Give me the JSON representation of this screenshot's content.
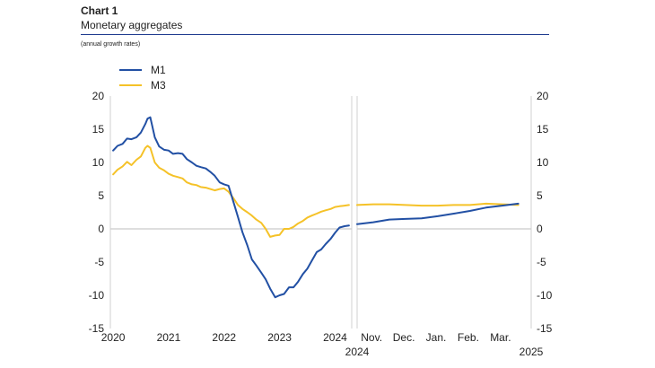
{
  "header": {
    "chart_number": "Chart 1",
    "chart_title": "Monetary aggregates",
    "subtitle": "(annual growth rates)"
  },
  "colors": {
    "m1": "#2250a4",
    "m3": "#f5c228",
    "title": "#1f3b8f",
    "rule": "#1f3b8f",
    "grid": "#d0d0d0",
    "zero": "#bdbdbd",
    "axis_text": "#222222"
  },
  "chart_data": {
    "type": "line",
    "title": "Monetary aggregates",
    "ylim": [
      -15,
      20
    ],
    "yticks": [
      20,
      15,
      10,
      5,
      0,
      -5,
      -10,
      -15
    ],
    "legend": {
      "placement": "top-left",
      "entries": [
        "M1",
        "M3"
      ]
    },
    "panels": [
      {
        "name": "left",
        "x_unit": "year",
        "xlim": [
          2019.95,
          2024.3
        ],
        "xticks": [
          {
            "value": 2020.0,
            "label": "2020"
          },
          {
            "value": 2021.0,
            "label": "2021"
          },
          {
            "value": 2022.0,
            "label": "2022"
          },
          {
            "value": 2023.0,
            "label": "2023"
          },
          {
            "value": 2024.0,
            "label": "2024"
          }
        ],
        "axis_note": "2024",
        "series": [
          {
            "name": "M1",
            "x": [
              2020.0,
              2020.08,
              2020.17,
              2020.25,
              2020.33,
              2020.42,
              2020.5,
              2020.58,
              2020.62,
              2020.67,
              2020.75,
              2020.83,
              2020.92,
              2021.0,
              2021.08,
              2021.17,
              2021.25,
              2021.33,
              2021.42,
              2021.5,
              2021.58,
              2021.67,
              2021.75,
              2021.83,
              2021.92,
              2022.0,
              2022.08,
              2022.17,
              2022.25,
              2022.33,
              2022.42,
              2022.5,
              2022.58,
              2022.67,
              2022.75,
              2022.83,
              2022.92,
              2023.0,
              2023.08,
              2023.17,
              2023.25,
              2023.33,
              2023.42,
              2023.5,
              2023.58,
              2023.67,
              2023.75,
              2023.83,
              2023.92,
              2024.0,
              2024.08,
              2024.17,
              2024.25
            ],
            "values": [
              11.8,
              12.5,
              12.8,
              13.6,
              13.5,
              13.8,
              14.5,
              15.8,
              16.6,
              16.8,
              13.8,
              12.4,
              11.9,
              11.8,
              11.3,
              11.4,
              11.3,
              10.5,
              10.0,
              9.5,
              9.3,
              9.1,
              8.6,
              8.0,
              7.0,
              6.7,
              6.5,
              4.0,
              1.8,
              -0.5,
              -2.5,
              -4.6,
              -5.5,
              -6.6,
              -7.6,
              -9.0,
              -10.3,
              -10.0,
              -9.8,
              -8.8,
              -8.8,
              -8.0,
              -6.8,
              -6.0,
              -4.8,
              -3.5,
              -3.1,
              -2.3,
              -1.5,
              -0.6,
              0.2,
              0.4,
              0.5
            ]
          },
          {
            "name": "M3",
            "x": [
              2020.0,
              2020.08,
              2020.17,
              2020.25,
              2020.33,
              2020.42,
              2020.5,
              2020.58,
              2020.62,
              2020.67,
              2020.75,
              2020.83,
              2020.92,
              2021.0,
              2021.08,
              2021.17,
              2021.25,
              2021.33,
              2021.42,
              2021.5,
              2021.58,
              2021.67,
              2021.75,
              2021.83,
              2021.92,
              2022.0,
              2022.08,
              2022.17,
              2022.25,
              2022.33,
              2022.42,
              2022.5,
              2022.58,
              2022.67,
              2022.75,
              2022.83,
              2022.92,
              2023.0,
              2023.08,
              2023.17,
              2023.25,
              2023.33,
              2023.42,
              2023.5,
              2023.58,
              2023.67,
              2023.75,
              2023.83,
              2023.92,
              2024.0,
              2024.08,
              2024.17,
              2024.25
            ],
            "values": [
              8.2,
              8.9,
              9.4,
              10.1,
              9.6,
              10.4,
              10.9,
              12.2,
              12.5,
              12.2,
              10.0,
              9.2,
              8.8,
              8.3,
              8.0,
              7.8,
              7.6,
              7.0,
              6.7,
              6.6,
              6.3,
              6.2,
              6.0,
              5.8,
              6.0,
              6.1,
              5.6,
              4.6,
              3.6,
              3.0,
              2.5,
              2.0,
              1.4,
              0.9,
              0.0,
              -1.2,
              -1.0,
              -0.9,
              0.0,
              0.0,
              0.3,
              0.8,
              1.2,
              1.7,
              2.0,
              2.3,
              2.6,
              2.8,
              3.0,
              3.3,
              3.4,
              3.5,
              3.6
            ]
          }
        ]
      },
      {
        "name": "right",
        "x_unit": "month",
        "xlim": [
          0,
          5.4
        ],
        "xticks": [
          {
            "value": 0.45,
            "label": "Nov."
          },
          {
            "value": 1.45,
            "label": "Dec."
          },
          {
            "value": 2.45,
            "label": "Jan."
          },
          {
            "value": 3.45,
            "label": "Feb."
          },
          {
            "value": 4.45,
            "label": "Mar."
          }
        ],
        "axis_note_left": "2024",
        "axis_note_right": "2025",
        "series": [
          {
            "name": "M1",
            "x": [
              0.0,
              0.5,
              1.0,
              1.5,
              2.0,
              2.5,
              3.0,
              3.5,
              4.0,
              4.5,
              5.0
            ],
            "values": [
              0.7,
              1.0,
              1.4,
              1.5,
              1.6,
              1.9,
              2.3,
              2.7,
              3.2,
              3.5,
              3.8
            ]
          },
          {
            "name": "M3",
            "x": [
              0.0,
              0.5,
              1.0,
              1.5,
              2.0,
              2.5,
              3.0,
              3.5,
              4.0,
              4.5,
              5.0
            ],
            "values": [
              3.6,
              3.7,
              3.7,
              3.6,
              3.5,
              3.5,
              3.6,
              3.6,
              3.8,
              3.7,
              3.6
            ]
          }
        ]
      }
    ]
  }
}
